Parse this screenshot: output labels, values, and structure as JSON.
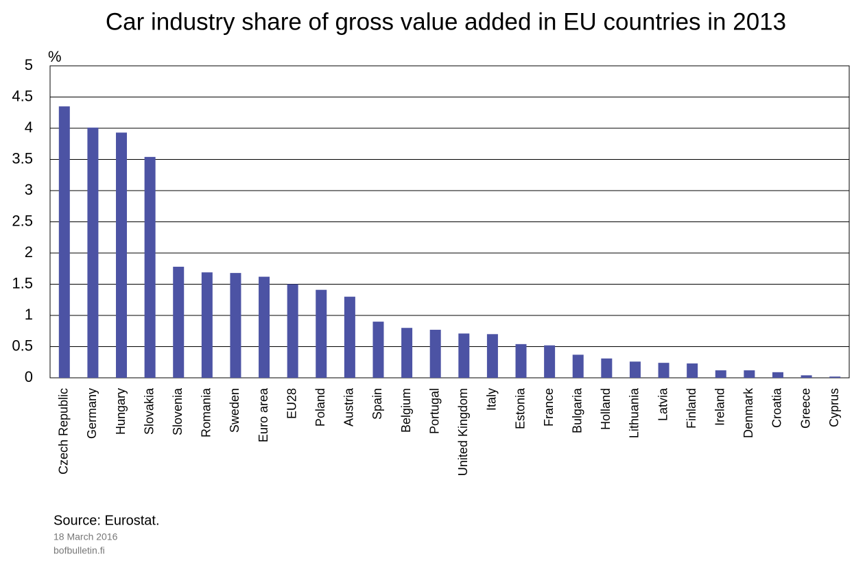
{
  "chart_data": {
    "type": "bar",
    "title": "Car industry share of gross value added in EU countries in 2013",
    "y_unit": "%",
    "categories": [
      "Czech Republic",
      "Germany",
      "Hungary",
      "Slovakia",
      "Slovenia",
      "Romania",
      "Sweden",
      "Euro area",
      "EU28",
      "Poland",
      "Austria",
      "Spain",
      "Belgium",
      "Portugal",
      "United Kingdom",
      "Italy",
      "Estonia",
      "France",
      "Bulgaria",
      "Holland",
      "Lithuania",
      "Latvia",
      "Finland",
      "Ireland",
      "Denmark",
      "Croatia",
      "Greece",
      "Cyprus"
    ],
    "values": [
      4.35,
      4.01,
      3.93,
      3.54,
      1.78,
      1.69,
      1.68,
      1.62,
      1.5,
      1.41,
      1.3,
      0.9,
      0.8,
      0.77,
      0.71,
      0.7,
      0.54,
      0.52,
      0.37,
      0.31,
      0.26,
      0.24,
      0.23,
      0.12,
      0.12,
      0.09,
      0.04,
      0.02
    ],
    "color": "#4c53a4",
    "ylim": [
      0,
      5
    ],
    "yticks": [
      0,
      0.5,
      1,
      1.5,
      2,
      2.5,
      3,
      3.5,
      4,
      4.5,
      5
    ],
    "grid": true,
    "source": "Source: Eurostat.",
    "date": "18 March 2016",
    "site": "bofbulletin.fi"
  }
}
